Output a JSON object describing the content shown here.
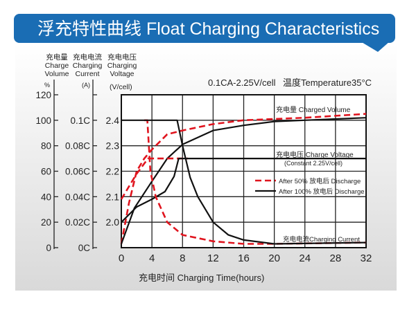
{
  "title": "浮充特性曲线 Float Charging Characteristics",
  "colors": {
    "banner": "#1a6db4",
    "red": "#e0141e",
    "black": "#111111"
  },
  "chart_data": {
    "type": "line",
    "title": "浮充特性曲线 Float Charging Characteristics",
    "condition": "0.1CA-2.25V/cell",
    "temperature": "温度Temperature35°C",
    "xlabel": "充电时间 Charging Time(hours)",
    "xlim": [
      0,
      32
    ],
    "xticks": [
      "0",
      "4",
      "8",
      "12",
      "16",
      "20",
      "24",
      "28",
      "32"
    ],
    "grid": true,
    "axes": {
      "volume": {
        "label_cn": "充电量",
        "label_en1": "Charge",
        "label_en2": "Volume",
        "unit": "%",
        "ticks": [
          "120",
          "100",
          "80",
          "60",
          "40",
          "20",
          "0"
        ],
        "ylim": [
          0,
          120
        ]
      },
      "current": {
        "label_cn": "充电电流",
        "label_en1": "Charging",
        "label_en2": "Current",
        "unit": "(A)",
        "ticks": [
          "",
          "0.1C",
          "0.08C",
          "0.06C",
          "0.04C",
          "0.02C",
          "0C"
        ],
        "ylim": [
          0,
          0.12
        ]
      },
      "voltage": {
        "label_cn": "充电电压",
        "label_en1": "Charging",
        "label_en2": "Voltage",
        "unit": "(V/cell)",
        "ticks": [
          "2.4",
          "2.3",
          "2.2",
          "2.1",
          "2.0"
        ],
        "ylim": [
          1.9,
          2.5
        ]
      }
    },
    "annotations": {
      "volume": "充电量 Charged Volume",
      "voltage": "充电电压 Charge Voltage",
      "voltage_note": "(Constant 2.25V/cell)",
      "current": "充电电流Charging Current"
    },
    "legend": {
      "placement": "right",
      "entries": [
        {
          "label": "After 50%  放电后 Discharge",
          "style": "dashed",
          "color": "#e0141e"
        },
        {
          "label": "After 100%  放电后 Discharge",
          "style": "solid",
          "color": "#111111"
        }
      ]
    },
    "series": [
      {
        "group": "After 50%",
        "quantity": "charged volume",
        "axis": "volume",
        "x": [
          0,
          1,
          2,
          3,
          4,
          6,
          8,
          12,
          16,
          20,
          24,
          32
        ],
        "y": [
          3,
          35,
          60,
          70,
          77,
          89,
          92,
          97,
          100,
          101,
          102,
          105
        ]
      },
      {
        "group": "After 100%",
        "quantity": "charged volume",
        "axis": "volume",
        "x": [
          0,
          1.7,
          4,
          6,
          8,
          12,
          16,
          20,
          24,
          28,
          32
        ],
        "y": [
          3,
          31,
          52,
          70,
          81,
          92,
          96,
          99,
          100,
          101,
          102
        ]
      },
      {
        "group": "After 50%",
        "quantity": "charge voltage",
        "axis": "voltage",
        "x": [
          0,
          1,
          2,
          3,
          3.5,
          8.7
        ],
        "y": [
          2.09,
          2.14,
          2.19,
          2.23,
          2.25,
          2.25
        ]
      },
      {
        "group": "After 100%",
        "quantity": "charge voltage",
        "axis": "voltage",
        "x": [
          0,
          2,
          4,
          5.7,
          6.9,
          7.5,
          32
        ],
        "y": [
          2.0,
          2.06,
          2.09,
          2.12,
          2.18,
          2.25,
          2.25
        ]
      },
      {
        "group": "After 50%",
        "quantity": "charging current",
        "axis": "current",
        "x": [
          3.0,
          3.4,
          3.8,
          4.5,
          6,
          8,
          12,
          16,
          20,
          32
        ],
        "y": [
          0.1,
          0.1,
          0.06,
          0.04,
          0.02,
          0.01,
          0.005,
          0.003,
          0.003,
          0.004
        ]
      },
      {
        "group": "After 100%",
        "quantity": "charging current",
        "axis": "current",
        "x": [
          0,
          7.3,
          8,
          9,
          10,
          12,
          14,
          16,
          20,
          32
        ],
        "y": [
          0.1,
          0.1,
          0.08,
          0.055,
          0.04,
          0.02,
          0.01,
          0.006,
          0.003,
          0.004
        ]
      }
    ]
  }
}
